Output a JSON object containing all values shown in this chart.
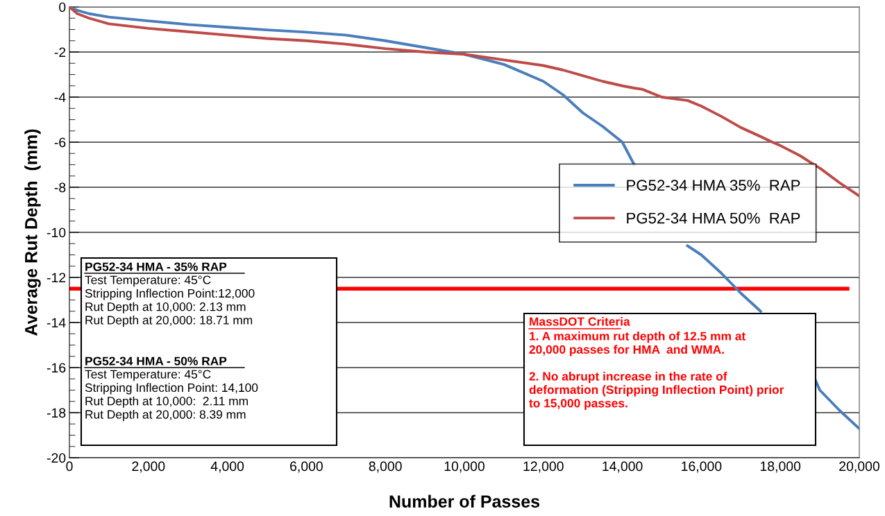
{
  "chart_data": {
    "type": "line",
    "xlabel": "Number of Passes",
    "ylabel": "Average Rut Depth  (mm)",
    "x": [
      0,
      200,
      500,
      1000,
      2000,
      3000,
      4000,
      5000,
      6000,
      7000,
      8000,
      9000,
      10000,
      11000,
      12000,
      12500,
      13000,
      13500,
      14000,
      14300,
      14500,
      15000,
      15650,
      16000,
      16500,
      17000,
      17500,
      17800,
      18000,
      18500,
      18900,
      19000,
      19500,
      20000
    ],
    "series": [
      {
        "name": "PG52-34 HMA 35%  RAP",
        "color": "#4a7ebb",
        "values": [
          0,
          -0.15,
          -0.3,
          -0.45,
          -0.62,
          -0.78,
          -0.9,
          -1.02,
          -1.12,
          -1.25,
          -1.5,
          -1.8,
          -2.1,
          -2.55,
          -3.3,
          -3.9,
          -4.7,
          -5.3,
          -6.0,
          -7.0,
          null,
          null,
          -10.6,
          -11.0,
          -11.8,
          -12.7,
          -13.5,
          null,
          null,
          null,
          -16.6,
          -17.0,
          -17.9,
          -18.71
        ]
      },
      {
        "name": "PG52-34 HMA 50%  RAP",
        "color": "#be4b48",
        "values": [
          0,
          -0.3,
          -0.5,
          -0.75,
          -0.95,
          -1.1,
          -1.25,
          -1.4,
          -1.5,
          -1.65,
          -1.85,
          -2.0,
          -2.1,
          -2.35,
          -2.6,
          -2.8,
          -3.05,
          -3.3,
          -3.5,
          -3.6,
          -3.65,
          -4.0,
          -4.15,
          -4.4,
          -4.85,
          -5.35,
          -5.75,
          -6.0,
          -6.15,
          -6.6,
          -7.05,
          -7.15,
          -7.8,
          -8.39
        ]
      }
    ],
    "xlim": [
      0,
      20000
    ],
    "xticks": [
      {
        "value": 0,
        "label": "0"
      },
      {
        "value": 2000,
        "label": "2,000"
      },
      {
        "value": 4000,
        "label": "4,000"
      },
      {
        "value": 6000,
        "label": "6,000"
      },
      {
        "value": 8000,
        "label": "8,000"
      },
      {
        "value": 10000,
        "label": "10,000"
      },
      {
        "value": 12000,
        "label": "12,000"
      },
      {
        "value": 14000,
        "label": "14,000"
      },
      {
        "value": 16000,
        "label": "16,000"
      },
      {
        "value": 18000,
        "label": "18,000"
      },
      {
        "value": 20000,
        "label": "20,000"
      }
    ],
    "ylim": [
      -20,
      0
    ],
    "yticks": [
      -20,
      -18,
      -16,
      -14,
      -12,
      -10,
      -8,
      -6,
      -4,
      -2,
      0
    ],
    "grid": "y",
    "legend": "right",
    "marker": "none",
    "line_style": "solid",
    "ref_lines": [
      {
        "axis": "y",
        "value": -12.5,
        "color": "#ff0000"
      }
    ],
    "annotations": [
      "PG52-34 HMA - 35% RAP",
      "Test Temperature: 45°C\nStripping Inflection Point:12,000\nRut Depth at 10,000: 2.13 mm\nRut Depth at 20,000: 18.71 mm",
      "PG52-34 HMA - 50% RAP",
      "Test Temperature: 45°C\nStripping Inflection Point: 14,100\nRut Depth at 10,000:  2.11 mm\nRut Depth at 20,000: 8.39 mm",
      "MassDOT Criteria",
      "1. A maximum rut depth of 12.5 mm at\n20,000 passes for HMA  and WMA.\n\n2. No abrupt increase in the rate of\ndeformation (Stripping Inflection Point) prior\nto 15,000 passes."
    ]
  }
}
